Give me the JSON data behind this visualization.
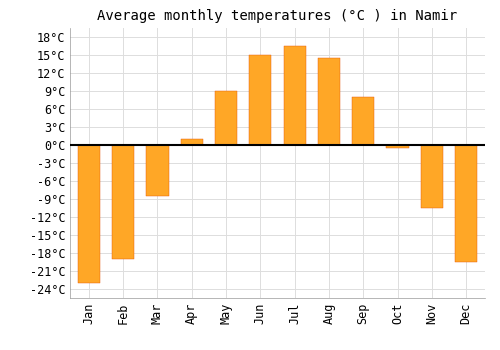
{
  "title": "Average monthly temperatures (°C ) in Namir",
  "months": [
    "Jan",
    "Feb",
    "Mar",
    "Apr",
    "May",
    "Jun",
    "Jul",
    "Aug",
    "Sep",
    "Oct",
    "Nov",
    "Dec"
  ],
  "values": [
    -23,
    -19,
    -8.5,
    1,
    9,
    15,
    16.5,
    14.5,
    8,
    -0.5,
    -10.5,
    -19.5
  ],
  "bar_color": "#FFA726",
  "bar_edge_color": "#E65100",
  "background_color": "#ffffff",
  "grid_color": "#dddddd",
  "ylim": [
    -25.5,
    19.5
  ],
  "yticks": [
    -24,
    -21,
    -18,
    -15,
    -12,
    -9,
    -6,
    -3,
    0,
    3,
    6,
    9,
    12,
    15,
    18
  ],
  "title_fontsize": 10,
  "tick_fontsize": 8.5,
  "font_family": "monospace"
}
